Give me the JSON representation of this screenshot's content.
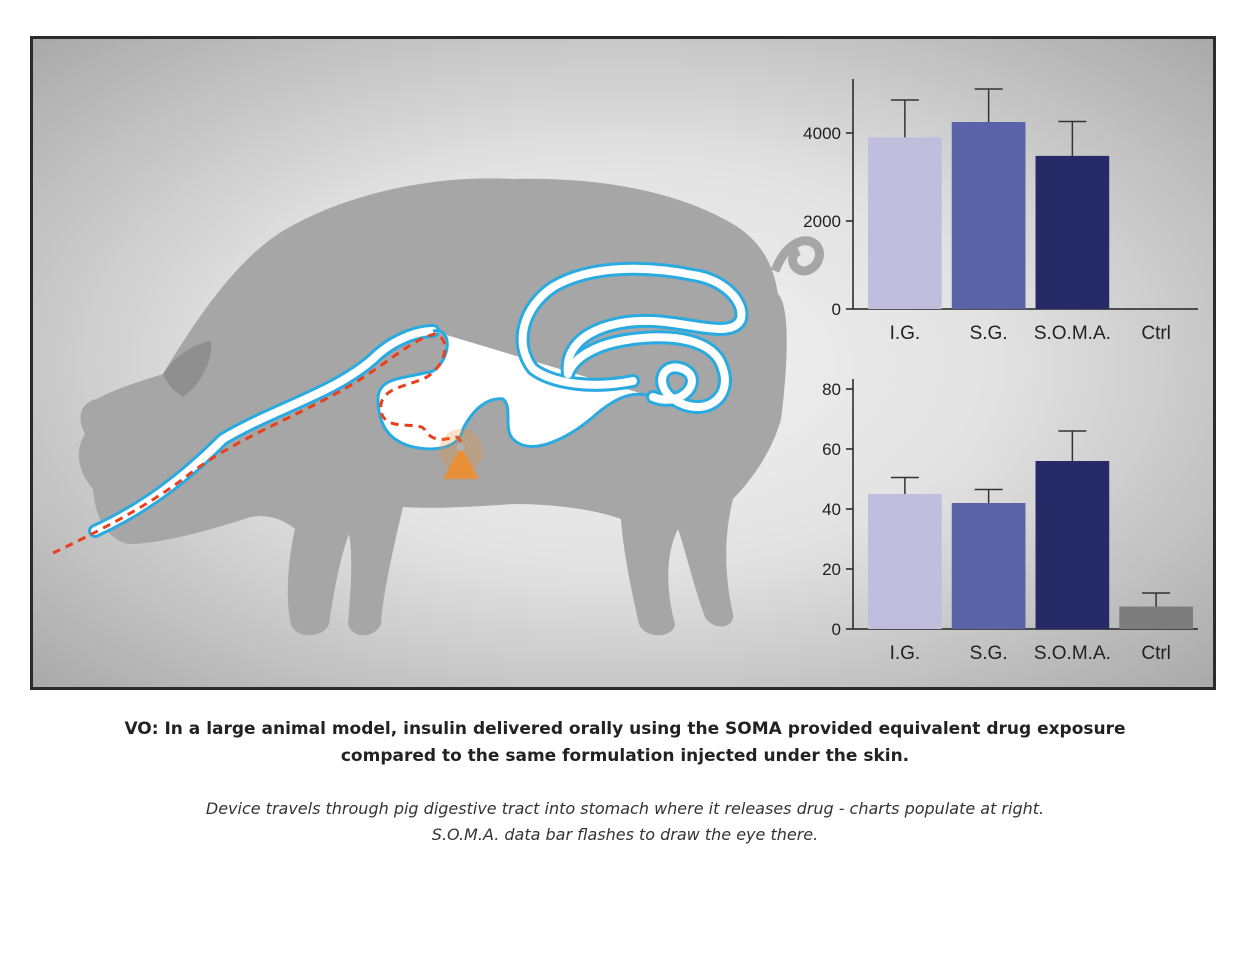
{
  "caption": {
    "voiceover_line1": "VO: In a large animal model, insulin delivered orally using the SOMA provided equivalent drug exposure",
    "voiceover_line2": "compared to the same formulation injected under the skin.",
    "note_line1": "Device travels through pig digestive tract into stomach where it releases drug - charts populate at right.",
    "note_line2": "S.O.M.A. data bar flashes to draw the eye there."
  },
  "illustration": {
    "subject": "pig-silhouette",
    "colors": {
      "pig": "#a6a6a6",
      "tract_outline": "#29aae1",
      "tract_fill": "#ffffff",
      "device_path": "#e8401c",
      "release_glow": "#f28c28"
    }
  },
  "chart_data": [
    {
      "type": "bar",
      "categories": [
        "I.G.",
        "S.G.",
        "S.O.M.A.",
        "Ctrl"
      ],
      "values": [
        3900,
        4250,
        3480,
        0
      ],
      "errors": [
        850,
        750,
        780,
        0
      ],
      "colors": [
        "#c0bedd",
        "#5a62a8",
        "#262a66",
        "#7d7d7d"
      ],
      "ylim": [
        0,
        5000
      ],
      "yticks": [
        0,
        2000,
        4000
      ],
      "ytick_labels": [
        "0",
        "2000",
        "4000"
      ],
      "xlabel": "",
      "ylabel": "",
      "title": ""
    },
    {
      "type": "bar",
      "categories": [
        "I.G.",
        "S.G.",
        "S.O.M.A.",
        "Ctrl"
      ],
      "values": [
        45,
        42,
        56,
        7.5
      ],
      "errors": [
        5.5,
        4.5,
        10,
        4.5
      ],
      "colors": [
        "#c0bedd",
        "#5a62a8",
        "#262a66",
        "#7d7d7d"
      ],
      "ylim": [
        0,
        80
      ],
      "yticks": [
        0,
        20,
        40,
        60,
        80
      ],
      "ytick_labels": [
        "0",
        "20",
        "40",
        "60",
        "80"
      ],
      "xlabel": "",
      "ylabel": "",
      "title": ""
    }
  ]
}
